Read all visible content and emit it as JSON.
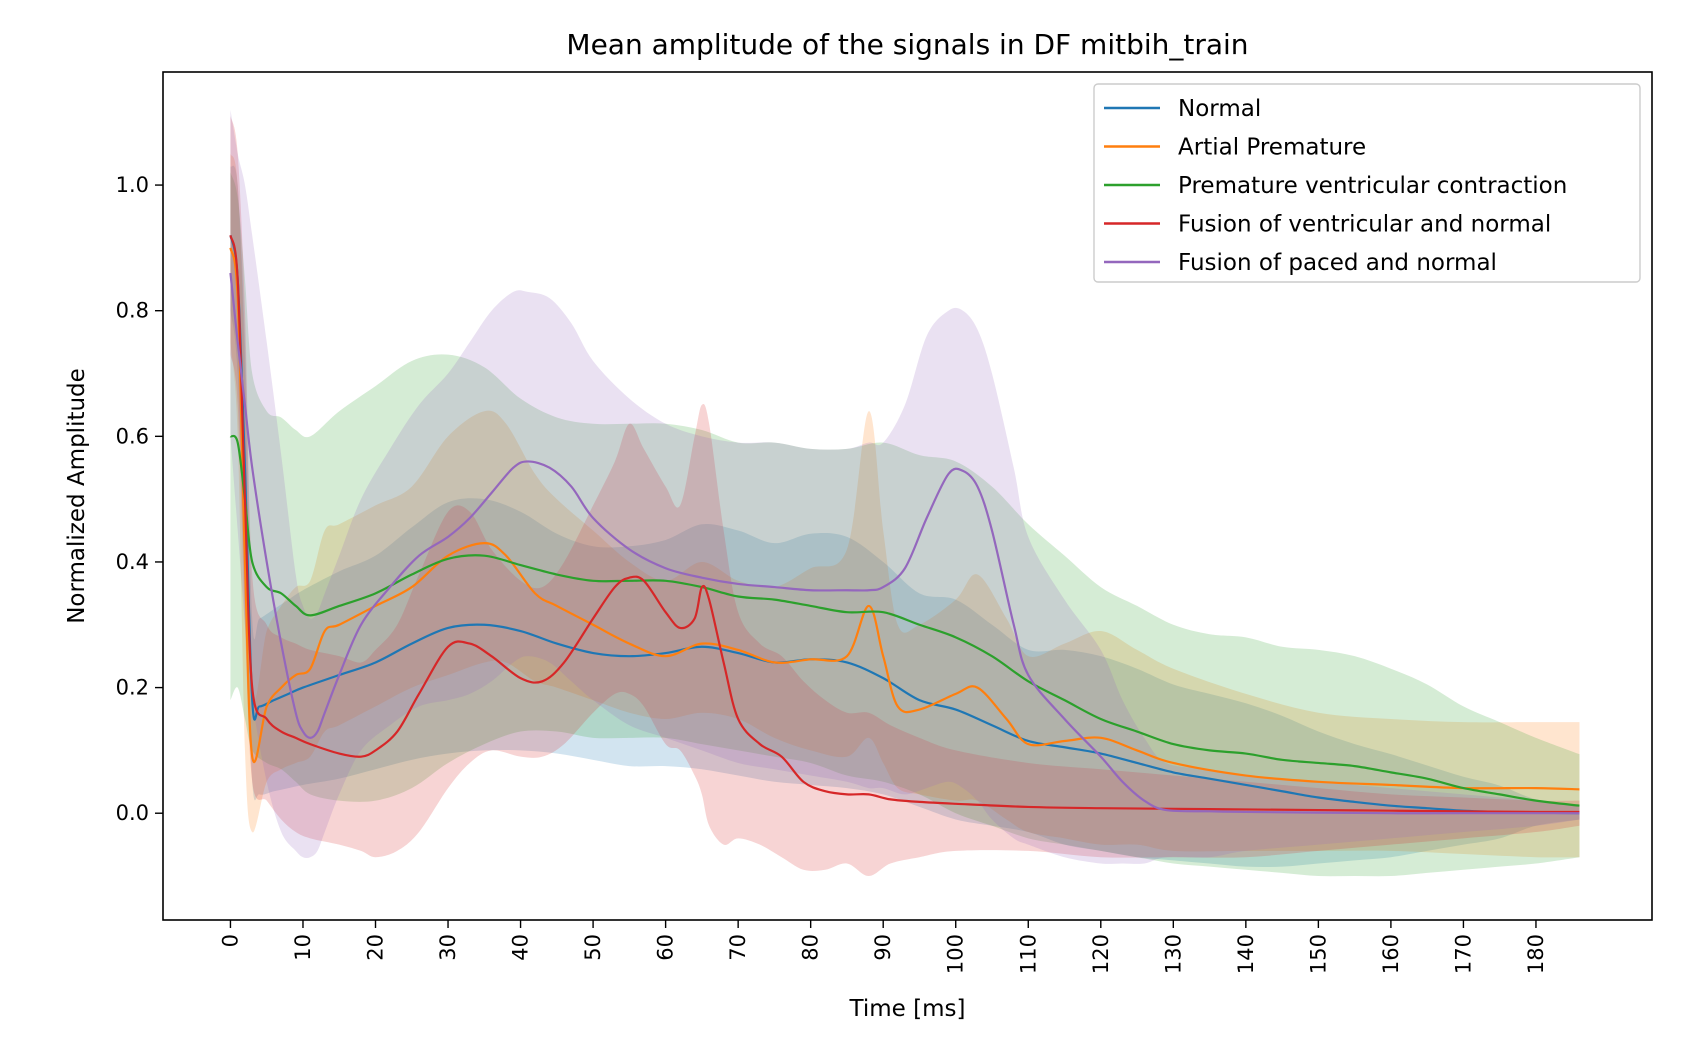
{
  "chart_data": {
    "type": "line",
    "title": "Mean amplitude of the signals in DF mitbih_train",
    "xlabel": "Time [ms]",
    "ylabel": "Normalized Amplitude",
    "xlim": [
      -9.3,
      196
    ],
    "ylim": [
      -0.17,
      1.18
    ],
    "x_ticks": [
      0,
      10,
      20,
      30,
      40,
      50,
      60,
      70,
      80,
      90,
      100,
      110,
      120,
      130,
      140,
      150,
      160,
      170,
      180
    ],
    "y_ticks": [
      0.0,
      0.2,
      0.4,
      0.6,
      0.8,
      1.0
    ],
    "y_tick_labels": [
      "0.0",
      "0.2",
      "0.4",
      "0.6",
      "0.8",
      "1.0"
    ],
    "grid": false,
    "legend_position": "top-right",
    "band": "mean ± std (shaded)",
    "series": [
      {
        "name": "Normal",
        "color": "#1f77b4",
        "x": [
          0,
          1,
          2,
          3,
          4,
          6,
          8,
          10,
          15,
          20,
          25,
          30,
          35,
          40,
          45,
          50,
          55,
          60,
          65,
          70,
          75,
          80,
          85,
          90,
          95,
          100,
          105,
          110,
          115,
          120,
          125,
          130,
          135,
          140,
          145,
          150,
          155,
          160,
          165,
          170,
          175,
          180,
          186
        ],
        "y": [
          0.92,
          0.85,
          0.55,
          0.18,
          0.17,
          0.18,
          0.19,
          0.2,
          0.22,
          0.24,
          0.27,
          0.295,
          0.3,
          0.29,
          0.27,
          0.255,
          0.25,
          0.255,
          0.265,
          0.255,
          0.24,
          0.245,
          0.24,
          0.215,
          0.18,
          0.165,
          0.14,
          0.115,
          0.105,
          0.095,
          0.08,
          0.065,
          0.055,
          0.045,
          0.035,
          0.025,
          0.018,
          0.012,
          0.008,
          0.004,
          0.002,
          0.001,
          0.0
        ],
        "lower": [
          0.8,
          0.7,
          0.35,
          0.05,
          0.03,
          0.035,
          0.04,
          0.045,
          0.055,
          0.07,
          0.085,
          0.095,
          0.1,
          0.1,
          0.095,
          0.085,
          0.075,
          0.075,
          0.07,
          0.06,
          0.05,
          0.045,
          0.04,
          0.03,
          0.01,
          -0.01,
          -0.02,
          -0.03,
          -0.05,
          -0.06,
          -0.07,
          -0.075,
          -0.08,
          -0.085,
          -0.085,
          -0.08,
          -0.075,
          -0.07,
          -0.06,
          -0.05,
          -0.04,
          -0.02,
          -0.01
        ],
        "upper": [
          1.03,
          1.0,
          0.75,
          0.31,
          0.31,
          0.325,
          0.34,
          0.355,
          0.385,
          0.41,
          0.455,
          0.495,
          0.5,
          0.48,
          0.445,
          0.425,
          0.425,
          0.435,
          0.46,
          0.45,
          0.43,
          0.445,
          0.44,
          0.4,
          0.35,
          0.34,
          0.3,
          0.26,
          0.26,
          0.25,
          0.23,
          0.205,
          0.19,
          0.175,
          0.155,
          0.13,
          0.11,
          0.094,
          0.076,
          0.058,
          0.044,
          0.022,
          0.01
        ]
      },
      {
        "name": "Artial Premature",
        "color": "#ff7f0e",
        "x": [
          0,
          1,
          2,
          3,
          5,
          7,
          9,
          11,
          13,
          15,
          20,
          25,
          30,
          35,
          38,
          42,
          45,
          50,
          55,
          60,
          65,
          70,
          75,
          80,
          85,
          88,
          90,
          92,
          95,
          100,
          103,
          107,
          110,
          115,
          120,
          125,
          130,
          140,
          150,
          160,
          170,
          180,
          186
        ],
        "y": [
          0.9,
          0.82,
          0.4,
          0.09,
          0.17,
          0.2,
          0.22,
          0.23,
          0.29,
          0.3,
          0.33,
          0.36,
          0.41,
          0.43,
          0.41,
          0.35,
          0.33,
          0.3,
          0.27,
          0.25,
          0.27,
          0.26,
          0.24,
          0.245,
          0.25,
          0.33,
          0.25,
          0.17,
          0.165,
          0.19,
          0.2,
          0.15,
          0.11,
          0.115,
          0.12,
          0.1,
          0.08,
          0.06,
          0.05,
          0.045,
          0.04,
          0.04,
          0.038
        ],
        "lower": [
          0.75,
          0.6,
          0.1,
          -0.03,
          0.05,
          0.07,
          0.08,
          0.09,
          0.13,
          0.14,
          0.17,
          0.2,
          0.22,
          0.24,
          0.24,
          0.21,
          0.2,
          0.18,
          0.16,
          0.15,
          0.16,
          0.15,
          0.12,
          0.1,
          0.09,
          0.12,
          0.08,
          0.04,
          0.03,
          0.02,
          0.02,
          -0.01,
          -0.03,
          -0.04,
          -0.05,
          -0.05,
          -0.06,
          -0.06,
          -0.06,
          -0.06,
          -0.065,
          -0.07,
          -0.07
        ],
        "upper": [
          1.05,
          1.0,
          0.7,
          0.2,
          0.29,
          0.33,
          0.36,
          0.37,
          0.45,
          0.46,
          0.49,
          0.52,
          0.6,
          0.64,
          0.62,
          0.54,
          0.5,
          0.45,
          0.4,
          0.37,
          0.4,
          0.37,
          0.36,
          0.39,
          0.42,
          0.64,
          0.45,
          0.3,
          0.3,
          0.34,
          0.38,
          0.31,
          0.25,
          0.27,
          0.29,
          0.26,
          0.23,
          0.19,
          0.16,
          0.15,
          0.145,
          0.145,
          0.145
        ]
      },
      {
        "name": "Premature ventricular contraction",
        "color": "#2ca02c",
        "x": [
          0,
          1,
          2,
          3,
          5,
          7,
          9,
          11,
          15,
          20,
          25,
          30,
          35,
          40,
          45,
          50,
          55,
          60,
          65,
          70,
          75,
          80,
          85,
          90,
          95,
          100,
          105,
          110,
          115,
          120,
          125,
          130,
          135,
          140,
          145,
          150,
          155,
          160,
          165,
          170,
          175,
          180,
          186
        ],
        "y": [
          0.6,
          0.59,
          0.5,
          0.4,
          0.36,
          0.35,
          0.33,
          0.315,
          0.33,
          0.35,
          0.38,
          0.405,
          0.41,
          0.395,
          0.38,
          0.37,
          0.37,
          0.37,
          0.36,
          0.345,
          0.34,
          0.33,
          0.32,
          0.32,
          0.3,
          0.28,
          0.25,
          0.21,
          0.18,
          0.15,
          0.13,
          0.11,
          0.1,
          0.095,
          0.085,
          0.08,
          0.075,
          0.065,
          0.055,
          0.04,
          0.03,
          0.02,
          0.012
        ],
        "lower": [
          0.18,
          0.2,
          0.15,
          0.1,
          0.08,
          0.07,
          0.05,
          0.03,
          0.02,
          0.02,
          0.04,
          0.08,
          0.11,
          0.13,
          0.13,
          0.12,
          0.12,
          0.12,
          0.11,
          0.1,
          0.09,
          0.08,
          0.06,
          0.05,
          0.03,
          0.0,
          -0.02,
          -0.04,
          -0.05,
          -0.06,
          -0.07,
          -0.08,
          -0.085,
          -0.09,
          -0.095,
          -0.1,
          -0.1,
          -0.1,
          -0.095,
          -0.09,
          -0.085,
          -0.08,
          -0.07
        ],
        "upper": [
          1.02,
          0.98,
          0.85,
          0.7,
          0.64,
          0.63,
          0.61,
          0.6,
          0.64,
          0.68,
          0.72,
          0.73,
          0.71,
          0.66,
          0.63,
          0.62,
          0.62,
          0.62,
          0.61,
          0.59,
          0.59,
          0.58,
          0.58,
          0.59,
          0.57,
          0.56,
          0.52,
          0.46,
          0.41,
          0.36,
          0.33,
          0.3,
          0.285,
          0.28,
          0.265,
          0.26,
          0.25,
          0.23,
          0.205,
          0.17,
          0.145,
          0.12,
          0.094
        ]
      },
      {
        "name": "Fusion of ventricular and normal",
        "color": "#d62728",
        "x": [
          0,
          1,
          2,
          3,
          5,
          7,
          9,
          11,
          15,
          18,
          20,
          23,
          26,
          30,
          33,
          36,
          40,
          43,
          46,
          50,
          53,
          55,
          57,
          60,
          62,
          64,
          65,
          66,
          68,
          70,
          73,
          76,
          79,
          82,
          85,
          88,
          91,
          95,
          100,
          110,
          120,
          130,
          140,
          150,
          160,
          170,
          180,
          186
        ],
        "y": [
          0.92,
          0.85,
          0.5,
          0.2,
          0.15,
          0.13,
          0.12,
          0.11,
          0.095,
          0.09,
          0.1,
          0.13,
          0.19,
          0.265,
          0.27,
          0.25,
          0.215,
          0.21,
          0.24,
          0.31,
          0.36,
          0.375,
          0.37,
          0.32,
          0.295,
          0.31,
          0.36,
          0.34,
          0.24,
          0.15,
          0.11,
          0.09,
          0.05,
          0.035,
          0.03,
          0.03,
          0.022,
          0.018,
          0.015,
          0.01,
          0.008,
          0.007,
          0.006,
          0.005,
          0.004,
          0.003,
          0.002,
          0.002
        ],
        "lower": [
          0.73,
          0.65,
          0.3,
          0.05,
          0.02,
          -0.01,
          -0.03,
          -0.04,
          -0.05,
          -0.06,
          -0.07,
          -0.06,
          -0.03,
          0.04,
          0.08,
          0.1,
          0.09,
          0.09,
          0.11,
          0.16,
          0.19,
          0.19,
          0.17,
          0.11,
          0.1,
          0.06,
          0.03,
          -0.02,
          -0.05,
          -0.04,
          -0.05,
          -0.07,
          -0.09,
          -0.09,
          -0.08,
          -0.1,
          -0.08,
          -0.07,
          -0.06,
          -0.06,
          -0.07,
          -0.07,
          -0.07,
          -0.06,
          -0.05,
          -0.04,
          -0.03,
          -0.02
        ],
        "upper": [
          1.11,
          1.05,
          0.8,
          0.38,
          0.3,
          0.28,
          0.27,
          0.26,
          0.25,
          0.24,
          0.26,
          0.3,
          0.38,
          0.48,
          0.48,
          0.42,
          0.37,
          0.36,
          0.4,
          0.49,
          0.56,
          0.62,
          0.58,
          0.52,
          0.49,
          0.6,
          0.65,
          0.62,
          0.45,
          0.32,
          0.27,
          0.25,
          0.21,
          0.18,
          0.16,
          0.16,
          0.14,
          0.12,
          0.1,
          0.08,
          0.07,
          0.06,
          0.05,
          0.04,
          0.03,
          0.025,
          0.02,
          0.02
        ]
      },
      {
        "name": "Fusion of paced and normal",
        "color": "#9467bd",
        "x": [
          0,
          1,
          2,
          3,
          5,
          7,
          9,
          10,
          11,
          12,
          13,
          15,
          18,
          22,
          26,
          30,
          33,
          36,
          39,
          41,
          44,
          47,
          50,
          55,
          60,
          65,
          70,
          75,
          80,
          85,
          88,
          90,
          93,
          96,
          99,
          101,
          103,
          105,
          108,
          110,
          115,
          120,
          123,
          126,
          129,
          135,
          140,
          150,
          160,
          170,
          180,
          186
        ],
        "y": [
          0.86,
          0.75,
          0.65,
          0.55,
          0.4,
          0.27,
          0.16,
          0.13,
          0.12,
          0.13,
          0.16,
          0.22,
          0.3,
          0.36,
          0.41,
          0.44,
          0.47,
          0.51,
          0.55,
          0.56,
          0.55,
          0.52,
          0.47,
          0.42,
          0.39,
          0.375,
          0.365,
          0.36,
          0.355,
          0.355,
          0.355,
          0.36,
          0.39,
          0.47,
          0.54,
          0.545,
          0.52,
          0.45,
          0.3,
          0.22,
          0.15,
          0.09,
          0.05,
          0.02,
          0.005,
          0.003,
          0.002,
          0.001,
          0.0,
          0.0,
          0.0,
          0.0
        ],
        "lower": [
          0.6,
          0.45,
          0.3,
          0.18,
          0.05,
          -0.03,
          -0.06,
          -0.07,
          -0.07,
          -0.06,
          -0.03,
          0.03,
          0.1,
          0.14,
          0.17,
          0.18,
          0.19,
          0.21,
          0.24,
          0.25,
          0.24,
          0.21,
          0.18,
          0.14,
          0.12,
          0.1,
          0.08,
          0.07,
          0.06,
          0.05,
          0.04,
          0.04,
          0.03,
          0.04,
          0.05,
          0.04,
          0.02,
          -0.01,
          -0.04,
          -0.05,
          -0.07,
          -0.08,
          -0.08,
          -0.08,
          -0.07,
          -0.07,
          -0.06,
          -0.05,
          -0.04,
          -0.03,
          -0.02,
          -0.01
        ],
        "upper": [
          1.12,
          1.05,
          1.0,
          0.92,
          0.75,
          0.57,
          0.38,
          0.33,
          0.31,
          0.32,
          0.35,
          0.41,
          0.5,
          0.58,
          0.65,
          0.7,
          0.75,
          0.8,
          0.83,
          0.83,
          0.82,
          0.78,
          0.72,
          0.66,
          0.62,
          0.6,
          0.59,
          0.59,
          0.58,
          0.58,
          0.59,
          0.59,
          0.65,
          0.76,
          0.8,
          0.8,
          0.77,
          0.7,
          0.55,
          0.44,
          0.34,
          0.26,
          0.18,
          0.12,
          0.08,
          0.07,
          0.06,
          0.05,
          0.04,
          0.03,
          0.02,
          0.01
        ]
      }
    ]
  }
}
